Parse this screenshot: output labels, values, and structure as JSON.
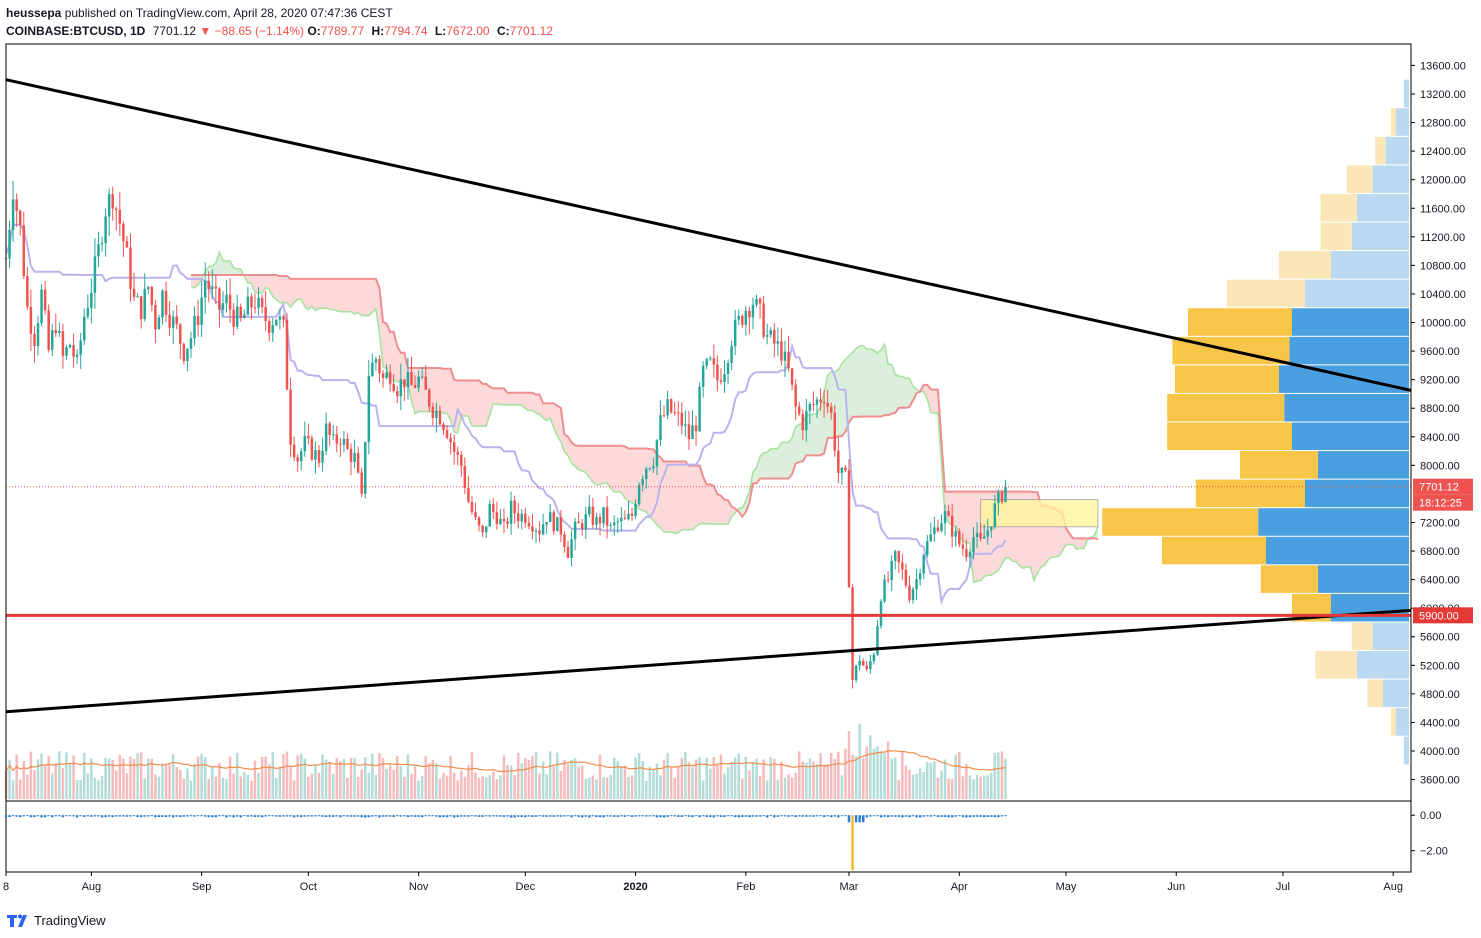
{
  "header": {
    "author": "heussepa",
    "published_text": "published on TradingView.com, April 28, 2020 07:47:36 CEST",
    "symbol": "COINBASE:BTCUSD, 1D",
    "last": "7701.12",
    "change": "−88.65 (−1.14%)",
    "o_label": "O:",
    "o_val": "7789.77",
    "h_label": "H:",
    "h_val": "7794.74",
    "l_label": "L:",
    "l_val": "7672.00",
    "c_label": "C:",
    "c_val": "7701.12"
  },
  "footer": {
    "brand": "TradingView"
  },
  "colors": {
    "up": "#26a69a",
    "down": "#ef5350",
    "trendline": "#000000",
    "support": "#e53935",
    "price_label": "#ef5350",
    "vp_up": "#4a9fe0",
    "vp_down": "#f7c548",
    "vp_up_faint": "#bcd9f2",
    "vp_down_faint": "#fbe6b8",
    "cloud_bull": "#d6ecd6",
    "cloud_bear": "#fbd4d4",
    "kijun": "#b9b4ee",
    "span_a": "#a7e3a0",
    "span_b": "#ef8e8e"
  },
  "chart_data": {
    "type": "candlestick",
    "symbol": "COINBASE:BTCUSD",
    "interval": "1D",
    "price_axis": {
      "range": [
        3300,
        13900
      ],
      "ticks": [
        "13600.00",
        "13200.00",
        "12800.00",
        "12400.00",
        "12000.00",
        "11600.00",
        "11200.00",
        "10800.00",
        "10400.00",
        "10000.00",
        "9600.00",
        "9200.00",
        "8800.00",
        "8400.00",
        "8000.00",
        "7200.00",
        "6800.00",
        "6400.00",
        "6000.00",
        "5600.00",
        "5200.00",
        "4800.00",
        "4400.00",
        "4000.00",
        "3600.00"
      ]
    },
    "time_axis": {
      "ticks": [
        {
          "label": "8",
          "t": -24
        },
        {
          "label": "Aug",
          "t": 0
        },
        {
          "label": "Sep",
          "t": 31
        },
        {
          "label": "Oct",
          "t": 61
        },
        {
          "label": "Nov",
          "t": 92
        },
        {
          "label": "Dec",
          "t": 122
        },
        {
          "label": "2020",
          "t": 153,
          "bold": true
        },
        {
          "label": "Feb",
          "t": 184
        },
        {
          "label": "Mar",
          "t": 213
        },
        {
          "label": "Apr",
          "t": 244
        },
        {
          "label": "May",
          "t": 274
        },
        {
          "label": "Jun",
          "t": 305
        },
        {
          "label": "Jul",
          "t": 335
        },
        {
          "label": "Aug",
          "t": 366
        }
      ]
    },
    "price_closes": [
      {
        "t": -24,
        "p": 10900
      },
      {
        "t": -22,
        "p": 11900
      },
      {
        "t": -20,
        "p": 11300
      },
      {
        "t": -18,
        "p": 10200
      },
      {
        "t": -16,
        "p": 9800
      },
      {
        "t": -14,
        "p": 10400
      },
      {
        "t": -12,
        "p": 9600
      },
      {
        "t": -10,
        "p": 10000
      },
      {
        "t": -8,
        "p": 9500
      },
      {
        "t": -6,
        "p": 9700
      },
      {
        "t": -4,
        "p": 9400
      },
      {
        "t": -2,
        "p": 10100
      },
      {
        "t": 0,
        "p": 10500
      },
      {
        "t": 2,
        "p": 11000
      },
      {
        "t": 4,
        "p": 11600
      },
      {
        "t": 6,
        "p": 11800
      },
      {
        "t": 8,
        "p": 11400
      },
      {
        "t": 10,
        "p": 10900
      },
      {
        "t": 12,
        "p": 10300
      },
      {
        "t": 14,
        "p": 10200
      },
      {
        "t": 16,
        "p": 10500
      },
      {
        "t": 18,
        "p": 10000
      },
      {
        "t": 20,
        "p": 10400
      },
      {
        "t": 22,
        "p": 10100
      },
      {
        "t": 24,
        "p": 9900
      },
      {
        "t": 26,
        "p": 9600
      },
      {
        "t": 28,
        "p": 9800
      },
      {
        "t": 30,
        "p": 10100
      },
      {
        "t": 32,
        "p": 10600
      },
      {
        "t": 34,
        "p": 10400
      },
      {
        "t": 36,
        "p": 10200
      },
      {
        "t": 38,
        "p": 10300
      },
      {
        "t": 40,
        "p": 10100
      },
      {
        "t": 42,
        "p": 10000
      },
      {
        "t": 44,
        "p": 10200
      },
      {
        "t": 46,
        "p": 10300
      },
      {
        "t": 48,
        "p": 10100
      },
      {
        "t": 50,
        "p": 10000
      },
      {
        "t": 52,
        "p": 10100
      },
      {
        "t": 54,
        "p": 9900
      },
      {
        "t": 56,
        "p": 8400
      },
      {
        "t": 58,
        "p": 8100
      },
      {
        "t": 60,
        "p": 8300
      },
      {
        "t": 62,
        "p": 8200
      },
      {
        "t": 64,
        "p": 8100
      },
      {
        "t": 66,
        "p": 8500
      },
      {
        "t": 68,
        "p": 8300
      },
      {
        "t": 70,
        "p": 8400
      },
      {
        "t": 72,
        "p": 8200
      },
      {
        "t": 74,
        "p": 8100
      },
      {
        "t": 76,
        "p": 7500
      },
      {
        "t": 78,
        "p": 9300
      },
      {
        "t": 80,
        "p": 9500
      },
      {
        "t": 82,
        "p": 9200
      },
      {
        "t": 84,
        "p": 9300
      },
      {
        "t": 86,
        "p": 9100
      },
      {
        "t": 88,
        "p": 9200
      },
      {
        "t": 90,
        "p": 9100
      },
      {
        "t": 92,
        "p": 9200
      },
      {
        "t": 94,
        "p": 9000
      },
      {
        "t": 96,
        "p": 8800
      },
      {
        "t": 98,
        "p": 8700
      },
      {
        "t": 100,
        "p": 8500
      },
      {
        "t": 102,
        "p": 8200
      },
      {
        "t": 104,
        "p": 8000
      },
      {
        "t": 106,
        "p": 7500
      },
      {
        "t": 108,
        "p": 7200
      },
      {
        "t": 110,
        "p": 7000
      },
      {
        "t": 112,
        "p": 7400
      },
      {
        "t": 114,
        "p": 7300
      },
      {
        "t": 116,
        "p": 7100
      },
      {
        "t": 118,
        "p": 7400
      },
      {
        "t": 120,
        "p": 7300
      },
      {
        "t": 122,
        "p": 7300
      },
      {
        "t": 124,
        "p": 7200
      },
      {
        "t": 126,
        "p": 7100
      },
      {
        "t": 128,
        "p": 7300
      },
      {
        "t": 130,
        "p": 7200
      },
      {
        "t": 132,
        "p": 7100
      },
      {
        "t": 134,
        "p": 6800
      },
      {
        "t": 136,
        "p": 7100
      },
      {
        "t": 138,
        "p": 7200
      },
      {
        "t": 140,
        "p": 7300
      },
      {
        "t": 142,
        "p": 7200
      },
      {
        "t": 144,
        "p": 7300
      },
      {
        "t": 146,
        "p": 7100
      },
      {
        "t": 148,
        "p": 7200
      },
      {
        "t": 150,
        "p": 7200
      },
      {
        "t": 152,
        "p": 7300
      },
      {
        "t": 154,
        "p": 7800
      },
      {
        "t": 156,
        "p": 8000
      },
      {
        "t": 158,
        "p": 8100
      },
      {
        "t": 160,
        "p": 8600
      },
      {
        "t": 162,
        "p": 8800
      },
      {
        "t": 164,
        "p": 8700
      },
      {
        "t": 166,
        "p": 8600
      },
      {
        "t": 168,
        "p": 8400
      },
      {
        "t": 170,
        "p": 8600
      },
      {
        "t": 172,
        "p": 9300
      },
      {
        "t": 174,
        "p": 9400
      },
      {
        "t": 176,
        "p": 9200
      },
      {
        "t": 178,
        "p": 9400
      },
      {
        "t": 180,
        "p": 9800
      },
      {
        "t": 182,
        "p": 10000
      },
      {
        "t": 184,
        "p": 10200
      },
      {
        "t": 186,
        "p": 10300
      },
      {
        "t": 188,
        "p": 10100
      },
      {
        "t": 190,
        "p": 9800
      },
      {
        "t": 192,
        "p": 9700
      },
      {
        "t": 194,
        "p": 9600
      },
      {
        "t": 196,
        "p": 9300
      },
      {
        "t": 198,
        "p": 8800
      },
      {
        "t": 200,
        "p": 8600
      },
      {
        "t": 202,
        "p": 8800
      },
      {
        "t": 204,
        "p": 8900
      },
      {
        "t": 206,
        "p": 9000
      },
      {
        "t": 208,
        "p": 8700
      },
      {
        "t": 210,
        "p": 7900
      },
      {
        "t": 212,
        "p": 7800
      },
      {
        "t": 214,
        "p": 5000
      },
      {
        "t": 216,
        "p": 5300
      },
      {
        "t": 218,
        "p": 5100
      },
      {
        "t": 220,
        "p": 5400
      },
      {
        "t": 222,
        "p": 6200
      },
      {
        "t": 224,
        "p": 6400
      },
      {
        "t": 226,
        "p": 6700
      },
      {
        "t": 228,
        "p": 6500
      },
      {
        "t": 230,
        "p": 6200
      },
      {
        "t": 232,
        "p": 6400
      },
      {
        "t": 234,
        "p": 6800
      },
      {
        "t": 236,
        "p": 7000
      },
      {
        "t": 238,
        "p": 7200
      },
      {
        "t": 240,
        "p": 7300
      },
      {
        "t": 242,
        "p": 7100
      },
      {
        "t": 244,
        "p": 6900
      },
      {
        "t": 246,
        "p": 6800
      },
      {
        "t": 248,
        "p": 7000
      },
      {
        "t": 250,
        "p": 6900
      },
      {
        "t": 252,
        "p": 7100
      },
      {
        "t": 254,
        "p": 7400
      },
      {
        "t": 256,
        "p": 7600
      },
      {
        "t": 257,
        "p": 7701
      }
    ],
    "trendlines": [
      {
        "name": "upper",
        "from": {
          "t": -24,
          "p": 13400
        },
        "to": {
          "t": 371,
          "p": 9050
        }
      },
      {
        "name": "lower",
        "from": {
          "t": -24,
          "p": 4550
        },
        "to": {
          "t": 371,
          "p": 5970
        }
      }
    ],
    "support_level": {
      "price": 5900,
      "label": "5900.00"
    },
    "last_price": {
      "price": 7701.12,
      "label": "7701.12",
      "countdown": "18:12:25"
    },
    "volume_profile_rows": [
      {
        "p": 13200,
        "up": 0.02,
        "down": 0.0
      },
      {
        "p": 12800,
        "up": 0.05,
        "down": 0.02
      },
      {
        "p": 12400,
        "up": 0.09,
        "down": 0.04
      },
      {
        "p": 12000,
        "up": 0.14,
        "down": 0.1
      },
      {
        "p": 11600,
        "up": 0.2,
        "down": 0.14
      },
      {
        "p": 11200,
        "up": 0.22,
        "down": 0.12
      },
      {
        "p": 10800,
        "up": 0.3,
        "down": 0.2
      },
      {
        "p": 10400,
        "up": 0.4,
        "down": 0.3
      },
      {
        "p": 10000,
        "up": 0.45,
        "down": 0.4
      },
      {
        "p": 9600,
        "up": 0.46,
        "down": 0.45
      },
      {
        "p": 9200,
        "up": 0.5,
        "down": 0.4
      },
      {
        "p": 8800,
        "up": 0.48,
        "down": 0.45
      },
      {
        "p": 8400,
        "up": 0.45,
        "down": 0.48
      },
      {
        "p": 8000,
        "up": 0.35,
        "down": 0.3
      },
      {
        "p": 7600,
        "up": 0.4,
        "down": 0.42
      },
      {
        "p": 7200,
        "up": 0.58,
        "down": 0.6
      },
      {
        "p": 6800,
        "up": 0.55,
        "down": 0.4
      },
      {
        "p": 6400,
        "up": 0.35,
        "down": 0.22
      },
      {
        "p": 6000,
        "up": 0.3,
        "down": 0.15
      },
      {
        "p": 5600,
        "up": 0.14,
        "down": 0.08
      },
      {
        "p": 5200,
        "up": 0.2,
        "down": 0.16
      },
      {
        "p": 4800,
        "up": 0.1,
        "down": 0.06
      },
      {
        "p": 4400,
        "up": 0.05,
        "down": 0.02
      },
      {
        "p": 4000,
        "up": 0.02,
        "down": 0.0
      }
    ],
    "oscillator": {
      "ticks": [
        "0.00",
        "−2.00"
      ],
      "range": [
        -3.2,
        0.8
      ]
    }
  }
}
